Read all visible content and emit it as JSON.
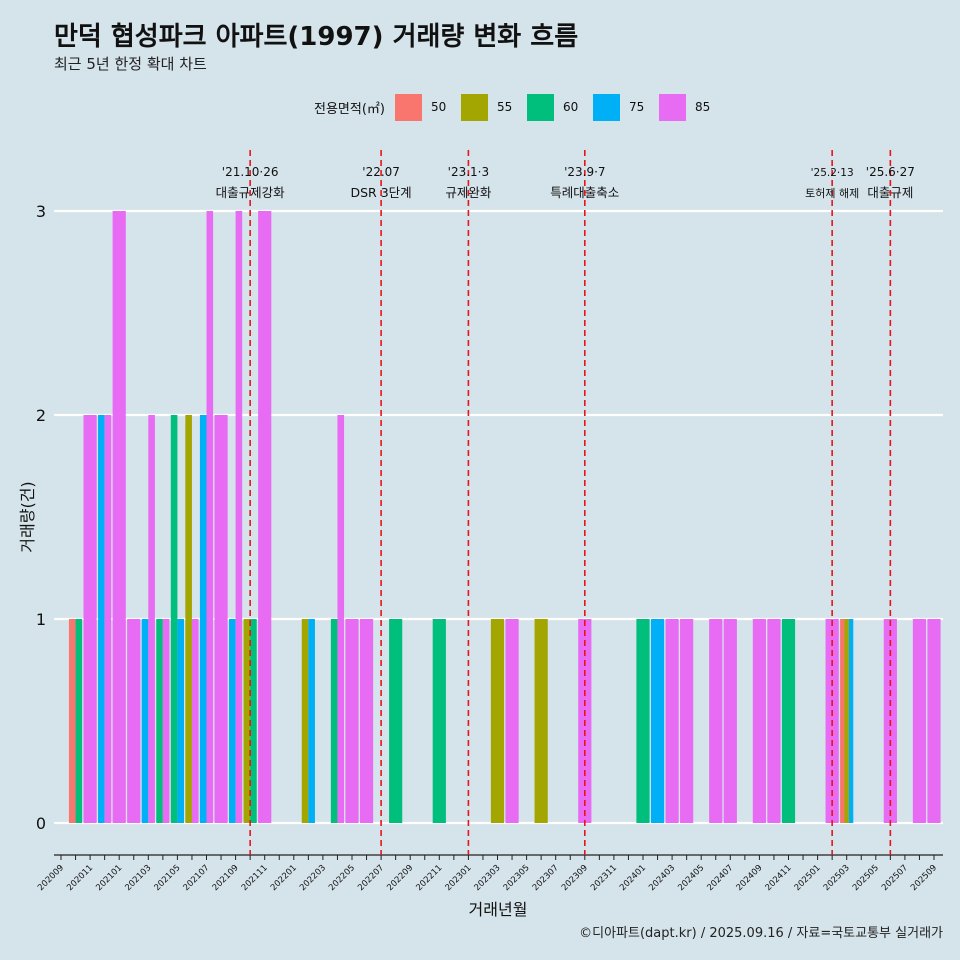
{
  "title": "만덕 협성파크 아파트(1997) 거래량 변화 흐름",
  "subtitle": "최근 5년 한정 확대 차트",
  "caption": "©디아파트(dapt.kr) / 2025.09.16 / 자료=국토교통부 실거래가",
  "colors": {
    "50": "#f8766d",
    "55": "#a3a500",
    "60": "#00bf7d",
    "75": "#00b0f6",
    "85": "#e76bf3",
    "grid": "#ffffff",
    "vline": "#e8141c",
    "background": "#d5e3ea"
  },
  "legend": {
    "title": "전용면적(㎡)",
    "items": [
      {
        "label": "50",
        "color": "#f8766d"
      },
      {
        "label": "55",
        "color": "#a3a500"
      },
      {
        "label": "60",
        "color": "#00bf7d"
      },
      {
        "label": "75",
        "color": "#00b0f6"
      },
      {
        "label": "85",
        "color": "#e76bf3"
      }
    ]
  },
  "chart_data": {
    "type": "bar",
    "title": "만덕 협성파크 아파트(1997) 거래량 변화 흐름",
    "subtitle": "최근 5년 한정 확대 차트",
    "xlabel": "거래년월",
    "ylabel": "거래량(건)",
    "ylim": [
      0,
      3
    ],
    "yticks": [
      0,
      1,
      2,
      3
    ],
    "grid": true,
    "legend_position": "top",
    "categories": [
      "202009",
      "202010",
      "202011",
      "202012",
      "202101",
      "202102",
      "202103",
      "202104",
      "202105",
      "202106",
      "202107",
      "202108",
      "202109",
      "202110",
      "202111",
      "202112",
      "202201",
      "202202",
      "202203",
      "202204",
      "202205",
      "202206",
      "202207",
      "202208",
      "202209",
      "202210",
      "202211",
      "202212",
      "202301",
      "202302",
      "202303",
      "202304",
      "202305",
      "202306",
      "202307",
      "202308",
      "202309",
      "202310",
      "202311",
      "202312",
      "202401",
      "202402",
      "202403",
      "202404",
      "202405",
      "202406",
      "202407",
      "202408",
      "202409",
      "202410",
      "202411",
      "202412",
      "202501",
      "202502",
      "202503",
      "202504",
      "202505",
      "202506",
      "202507",
      "202508",
      "202509"
    ],
    "bars": [
      {
        "month": "202010",
        "segments": [
          {
            "area": "50",
            "value": 1
          },
          {
            "area": "60",
            "value": 1
          }
        ]
      },
      {
        "month": "202011",
        "segments": [
          {
            "area": "85",
            "value": 2
          }
        ]
      },
      {
        "month": "202012",
        "segments": [
          {
            "area": "75",
            "value": 2
          },
          {
            "area": "85",
            "value": 2
          }
        ]
      },
      {
        "month": "202101",
        "segments": [
          {
            "area": "85",
            "value": 3
          }
        ]
      },
      {
        "month": "202102",
        "segments": [
          {
            "area": "85",
            "value": 1
          }
        ]
      },
      {
        "month": "202103",
        "segments": [
          {
            "area": "75",
            "value": 1
          },
          {
            "area": "85",
            "value": 2
          }
        ]
      },
      {
        "month": "202104",
        "segments": [
          {
            "area": "60",
            "value": 1
          },
          {
            "area": "85",
            "value": 1
          }
        ]
      },
      {
        "month": "202105",
        "segments": [
          {
            "area": "60",
            "value": 2
          },
          {
            "area": "75",
            "value": 1
          }
        ]
      },
      {
        "month": "202106",
        "segments": [
          {
            "area": "55",
            "value": 2
          },
          {
            "area": "85",
            "value": 1
          }
        ]
      },
      {
        "month": "202107",
        "segments": [
          {
            "area": "75",
            "value": 2
          },
          {
            "area": "85",
            "value": 3
          }
        ]
      },
      {
        "month": "202108",
        "segments": [
          {
            "area": "85",
            "value": 2
          }
        ]
      },
      {
        "month": "202109",
        "segments": [
          {
            "area": "75",
            "value": 1
          },
          {
            "area": "85",
            "value": 3
          }
        ]
      },
      {
        "month": "202110",
        "segments": [
          {
            "area": "55",
            "value": 1
          },
          {
            "area": "60",
            "value": 1
          }
        ]
      },
      {
        "month": "202111",
        "segments": [
          {
            "area": "85",
            "value": 3
          }
        ]
      },
      {
        "month": "202202",
        "segments": [
          {
            "area": "55",
            "value": 1
          },
          {
            "area": "75",
            "value": 1
          }
        ]
      },
      {
        "month": "202204",
        "segments": [
          {
            "area": "60",
            "value": 1
          },
          {
            "area": "85",
            "value": 2
          }
        ]
      },
      {
        "month": "202205",
        "segments": [
          {
            "area": "85",
            "value": 1
          }
        ]
      },
      {
        "month": "202206",
        "segments": [
          {
            "area": "85",
            "value": 1
          }
        ]
      },
      {
        "month": "202208",
        "segments": [
          {
            "area": "60",
            "value": 1
          }
        ]
      },
      {
        "month": "202211",
        "segments": [
          {
            "area": "60",
            "value": 1
          }
        ]
      },
      {
        "month": "202303",
        "segments": [
          {
            "area": "55",
            "value": 1
          }
        ]
      },
      {
        "month": "202304",
        "segments": [
          {
            "area": "85",
            "value": 1
          }
        ]
      },
      {
        "month": "202306",
        "segments": [
          {
            "area": "55",
            "value": 1
          }
        ]
      },
      {
        "month": "202309",
        "segments": [
          {
            "area": "85",
            "value": 1
          }
        ]
      },
      {
        "month": "202401",
        "segments": [
          {
            "area": "60",
            "value": 1
          }
        ]
      },
      {
        "month": "202402",
        "segments": [
          {
            "area": "75",
            "value": 1
          }
        ]
      },
      {
        "month": "202403",
        "segments": [
          {
            "area": "85",
            "value": 1
          }
        ]
      },
      {
        "month": "202404",
        "segments": [
          {
            "area": "85",
            "value": 1
          }
        ]
      },
      {
        "month": "202406",
        "segments": [
          {
            "area": "85",
            "value": 1
          }
        ]
      },
      {
        "month": "202407",
        "segments": [
          {
            "area": "85",
            "value": 1
          }
        ]
      },
      {
        "month": "202409",
        "segments": [
          {
            "area": "85",
            "value": 1
          }
        ]
      },
      {
        "month": "202410",
        "segments": [
          {
            "area": "85",
            "value": 1
          }
        ]
      },
      {
        "month": "202411",
        "segments": [
          {
            "area": "60",
            "value": 1
          }
        ]
      },
      {
        "month": "202502",
        "segments": [
          {
            "area": "85",
            "value": 1
          }
        ]
      },
      {
        "month": "202503",
        "segments": [
          {
            "area": "50",
            "value": 1
          },
          {
            "area": "55",
            "value": 1
          },
          {
            "area": "75",
            "value": 1
          }
        ]
      },
      {
        "month": "202506",
        "segments": [
          {
            "area": "85",
            "value": 1
          }
        ]
      },
      {
        "month": "202508",
        "segments": [
          {
            "area": "85",
            "value": 1
          }
        ]
      },
      {
        "month": "202509",
        "segments": [
          {
            "area": "85",
            "value": 1
          }
        ]
      }
    ],
    "events": [
      {
        "month": "202110",
        "date": "'21.10·26",
        "label": "대출규제강화"
      },
      {
        "month": "202207",
        "date": "'22.07",
        "label": "DSR 3단계"
      },
      {
        "month": "202301",
        "date": "'23.1·3",
        "label": "규제완화"
      },
      {
        "month": "202309",
        "date": "'23.9·7",
        "label": "특례대출축소"
      },
      {
        "month": "202502",
        "date": "'25.2·13",
        "label": "토허제 해제"
      },
      {
        "month": "202506",
        "date": "'25.6·27",
        "label": "대출규제"
      }
    ]
  }
}
